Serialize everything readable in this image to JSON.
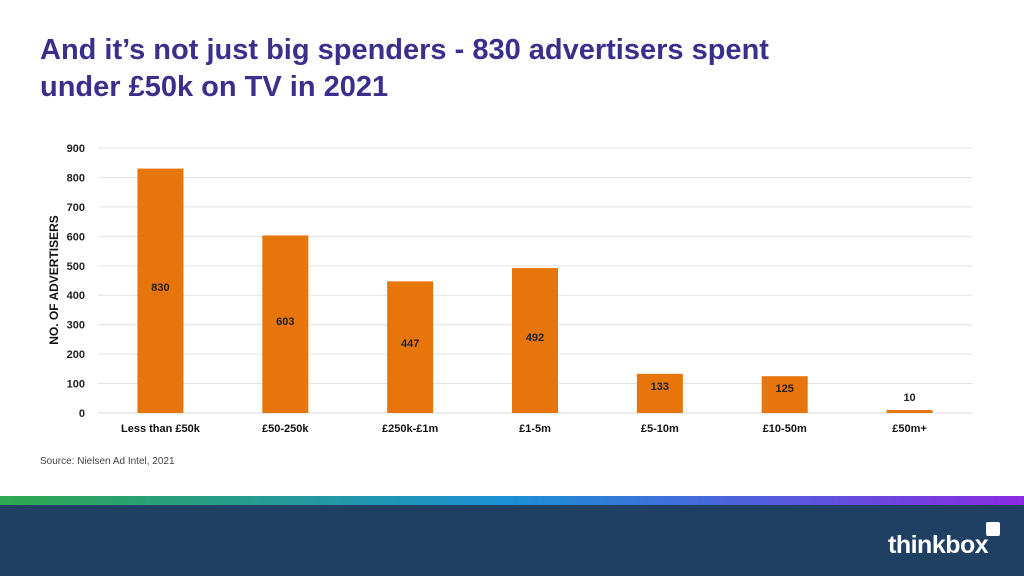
{
  "title_lines": [
    "And it’s not just big spenders - 830 advertisers spent",
    "under £50k on TV in 2021"
  ],
  "source": "Source: Nielsen Ad Intel, 2021",
  "logo": {
    "text": "thinkbox",
    "icon": "square-icon"
  },
  "colors": {
    "bar": "#e8740c",
    "title": "#3a2f8c",
    "footer": "#1f3f63",
    "stripe": [
      "#2fa84f",
      "#1c8fd6",
      "#8a2be2"
    ]
  },
  "chart_data": {
    "type": "bar",
    "title": "",
    "xlabel": "",
    "ylabel": "NO. OF ADVERTISERS",
    "ylim": [
      0,
      900
    ],
    "yticks": [
      0,
      100,
      200,
      300,
      400,
      500,
      600,
      700,
      800,
      900
    ],
    "categories": [
      "Less than £50k",
      "£50-250k",
      "£250k-£1m",
      "£1-5m",
      "£5-10m",
      "£10-50m",
      "£50m+"
    ],
    "values": [
      830,
      603,
      447,
      492,
      133,
      125,
      10
    ],
    "grid": true,
    "legend": "none"
  }
}
